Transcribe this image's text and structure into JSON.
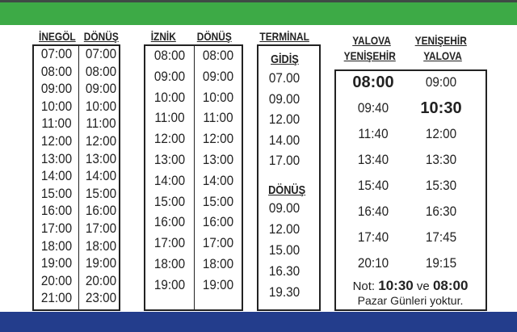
{
  "inegol": {
    "header_left": "İNEGÖL",
    "header_right": "DÖNÜŞ",
    "rows": [
      [
        "07:00",
        "07:00"
      ],
      [
        "08:00",
        "08:00"
      ],
      [
        "09:00",
        "09:00"
      ],
      [
        "10:00",
        "10:00"
      ],
      [
        "11:00",
        "11:00"
      ],
      [
        "12:00",
        "12:00"
      ],
      [
        "13:00",
        "13:00"
      ],
      [
        "14:00",
        "14:00"
      ],
      [
        "15:00",
        "15:00"
      ],
      [
        "16:00",
        "16:00"
      ],
      [
        "17:00",
        "17:00"
      ],
      [
        "18:00",
        "18:00"
      ],
      [
        "19:00",
        "19:00"
      ],
      [
        "20:00",
        "20:00"
      ],
      [
        "21:00",
        "23:00"
      ]
    ]
  },
  "iznik": {
    "header_left": "İZNİK",
    "header_right": "DÖNÜŞ",
    "rows": [
      [
        "08:00",
        "08:00"
      ],
      [
        "09:00",
        "09:00"
      ],
      [
        "10:00",
        "10:00"
      ],
      [
        "11:00",
        "11:00"
      ],
      [
        "12:00",
        "12:00"
      ],
      [
        "13:00",
        "13:00"
      ],
      [
        "14:00",
        "14:00"
      ],
      [
        "15:00",
        "15:00"
      ],
      [
        "16:00",
        "16:00"
      ],
      [
        "17:00",
        "17:00"
      ],
      [
        "18:00",
        "18:00"
      ],
      [
        "19:00",
        "19:00"
      ]
    ]
  },
  "terminal": {
    "header": "TERMİNAL",
    "gidis_label": "GİDİŞ",
    "gidis": [
      "07.00",
      "09.00",
      "12.00",
      "14.00",
      "17.00"
    ],
    "donus_label": "DÖNÜŞ",
    "donus": [
      "09.00",
      "12.00",
      "15.00",
      "16.30",
      "19.30"
    ]
  },
  "yalova": {
    "header_left_1": "YALOVA",
    "header_left_2": "YENİŞEHİR",
    "header_right_1": "YENİŞEHİR",
    "header_right_2": "YALOVA",
    "rows": [
      [
        "08:00",
        "09:00"
      ],
      [
        "09:40",
        "10:30"
      ],
      [
        "11:40",
        "12:00"
      ],
      [
        "13:40",
        "13:30"
      ],
      [
        "15:40",
        "15:30"
      ],
      [
        "16:40",
        "16:30"
      ],
      [
        "17:40",
        "17:45"
      ],
      [
        "20:10",
        "19:15"
      ]
    ],
    "bold": [
      "08:00",
      "10:30"
    ],
    "note_prefix": "Not:",
    "note_t1": "10:30",
    "note_mid": "ve",
    "note_t2": "08:00",
    "note_line2": "Pazar Günleri yoktur."
  },
  "colors": {
    "green": "#3daa46",
    "blue": "#233d8c"
  }
}
